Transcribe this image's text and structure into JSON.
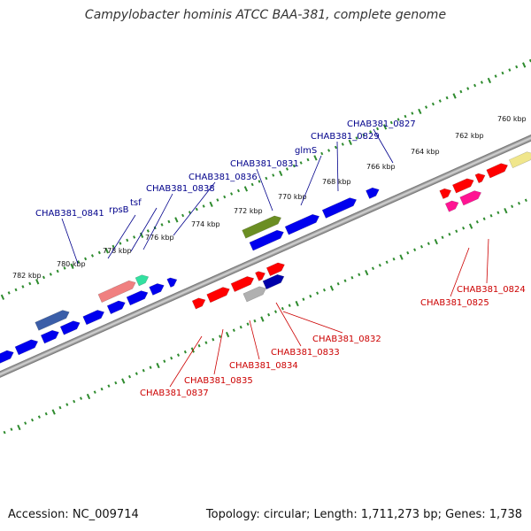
{
  "title": "Campylobacter hominis ATCC BAA-381, complete genome",
  "footer": {
    "accession": "Accession: NC_009714",
    "stats": "Topology: circular; Length: 1,711,273 bp; Genes: 1,738"
  },
  "colors": {
    "backbone": "#8c8c8c",
    "tick": "#2e8b2e",
    "forward_label": "#00008b",
    "reverse_label": "#cc0000"
  },
  "kbp_labels": [
    "782 kbp",
    "780 kbp",
    "778 kbp",
    "776 kbp",
    "774 kbp",
    "772 kbp",
    "770 kbp",
    "768 kbp",
    "766 kbp",
    "764 kbp",
    "762 kbp",
    "760 kbp"
  ],
  "forward_gene_labels": [
    "CHAB381_0841",
    "rpsB",
    "tsf",
    "CHAB381_0838",
    "CHAB381_0836",
    "CHAB381_0831",
    "glmS",
    "CHAB381_0829",
    "CHAB381_0827"
  ],
  "reverse_gene_labels": [
    "CHAB381_0837",
    "CHAB381_0835",
    "CHAB381_0834",
    "CHAB381_0833",
    "CHAB381_0832",
    "CHAB381_0825",
    "CHAB381_0824"
  ]
}
